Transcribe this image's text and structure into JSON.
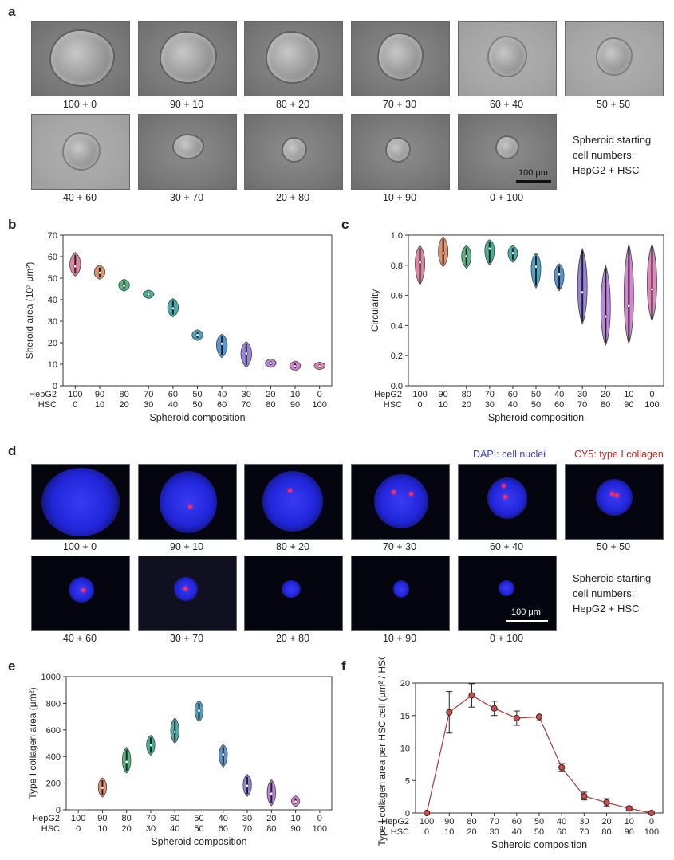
{
  "panels": {
    "a": "a",
    "b": "b",
    "c": "c",
    "d": "d",
    "e": "e",
    "f": "f"
  },
  "compositions": [
    "100 + 0",
    "90 + 10",
    "80 + 20",
    "70 + 30",
    "60 + 40",
    "50 + 50",
    "40 + 60",
    "30 + 70",
    "20 + 80",
    "10 + 90",
    "0 + 100"
  ],
  "note": {
    "line1": "Spheroid starting",
    "line2": "cell numbers:",
    "line3": "HepG2 + HSC"
  },
  "scalebar": "100 μm",
  "fluor_legend": {
    "dapi": "DAPI: cell nuclei",
    "cy5": "CY5: type I collagen"
  },
  "colors": {
    "dapi": "#3b3bb3",
    "cy5": "#cc2222",
    "line": "#a33a3a"
  },
  "chart_data": [
    {
      "id": "b",
      "type": "violin",
      "ylabel": "Sheroid area (10³ μm²)",
      "xlabel": "Spheroid composition",
      "ylim": [
        0,
        70
      ],
      "yticks": [
        0,
        10,
        20,
        30,
        40,
        50,
        60,
        70
      ],
      "row_labels": [
        "HepG2",
        "HSC"
      ],
      "hepg2": [
        "100",
        "90",
        "80",
        "70",
        "60",
        "50",
        "40",
        "30",
        "20",
        "10",
        "0"
      ],
      "hsc": [
        "0",
        "10",
        "20",
        "30",
        "40",
        "50",
        "60",
        "70",
        "80",
        "90",
        "100"
      ],
      "medians": [
        55.5,
        52.5,
        46.5,
        42.5,
        36,
        23.5,
        19.5,
        15,
        10.5,
        9,
        9
      ],
      "ranges": [
        [
          51,
          62
        ],
        [
          49.5,
          56
        ],
        [
          44,
          49.5
        ],
        [
          40.5,
          44.5
        ],
        [
          32,
          40.5
        ],
        [
          21,
          26
        ],
        [
          13,
          24
        ],
        [
          8.5,
          20.5
        ],
        [
          8.5,
          12.5
        ],
        [
          7,
          11.5
        ],
        [
          7.5,
          11
        ]
      ]
    },
    {
      "id": "c",
      "type": "violin",
      "ylabel": "Circularity",
      "xlabel": "Spheroid composition",
      "ylim": [
        0,
        1.0
      ],
      "yticks": [
        "0.0",
        "0.2",
        "0.4",
        "0.6",
        "0.8",
        "1.0"
      ],
      "row_labels": [
        "HepG2",
        "HSC"
      ],
      "hepg2": [
        "100",
        "90",
        "80",
        "70",
        "60",
        "50",
        "40",
        "30",
        "20",
        "10",
        "0"
      ],
      "hsc": [
        "0",
        "10",
        "20",
        "30",
        "40",
        "50",
        "60",
        "70",
        "80",
        "90",
        "100"
      ],
      "medians": [
        0.82,
        0.88,
        0.86,
        0.91,
        0.88,
        0.79,
        0.74,
        0.62,
        0.46,
        0.53,
        0.64
      ],
      "ranges": [
        [
          0.67,
          0.93
        ],
        [
          0.79,
          0.99
        ],
        [
          0.78,
          0.93
        ],
        [
          0.8,
          0.97
        ],
        [
          0.82,
          0.93
        ],
        [
          0.65,
          0.88
        ],
        [
          0.63,
          0.81
        ],
        [
          0.41,
          0.91
        ],
        [
          0.27,
          0.8
        ],
        [
          0.28,
          0.94
        ],
        [
          0.43,
          0.94
        ]
      ]
    },
    {
      "id": "e",
      "type": "violin",
      "ylabel": "Type I collagen area (μm²)",
      "xlabel": "Spheroid composition",
      "ylim": [
        0,
        1000
      ],
      "yticks": [
        0,
        200,
        400,
        600,
        800,
        1000
      ],
      "row_labels": [
        "HepG2",
        "HSC"
      ],
      "hepg2": [
        "100",
        "90",
        "80",
        "70",
        "60",
        "50",
        "40",
        "30",
        "20",
        "10",
        "0"
      ],
      "hsc": [
        "0",
        "10",
        "20",
        "30",
        "40",
        "50",
        "60",
        "70",
        "80",
        "90",
        "100"
      ],
      "medians": [
        0,
        165,
        360,
        485,
        585,
        745,
        415,
        180,
        120,
        60,
        0
      ],
      "ranges": [
        [
          0,
          0
        ],
        [
          95,
          240
        ],
        [
          275,
          470
        ],
        [
          410,
          560
        ],
        [
          500,
          690
        ],
        [
          660,
          820
        ],
        [
          320,
          490
        ],
        [
          100,
          265
        ],
        [
          30,
          225
        ],
        [
          25,
          105
        ],
        [
          0,
          0
        ]
      ]
    },
    {
      "id": "f",
      "type": "line",
      "ylabel": "Type I collagen area per HSC cell (μm² / HSC)",
      "xlabel": "Spheroid composition",
      "ylim": [
        0,
        20
      ],
      "yticks": [
        0,
        5,
        10,
        15,
        20
      ],
      "row_labels": [
        "HepG2",
        "HSC"
      ],
      "hepg2": [
        "100",
        "90",
        "80",
        "70",
        "60",
        "50",
        "40",
        "30",
        "20",
        "10",
        "0"
      ],
      "hsc": [
        "0",
        "10",
        "20",
        "30",
        "40",
        "50",
        "60",
        "70",
        "80",
        "90",
        "100"
      ],
      "values": [
        0,
        15.5,
        18.1,
        16.1,
        14.6,
        14.8,
        7,
        2.6,
        1.6,
        0.7,
        0
      ],
      "errors": [
        0,
        3.2,
        1.8,
        1.1,
        1.1,
        0.6,
        0.6,
        0.6,
        0.6,
        0.3,
        0
      ]
    }
  ]
}
